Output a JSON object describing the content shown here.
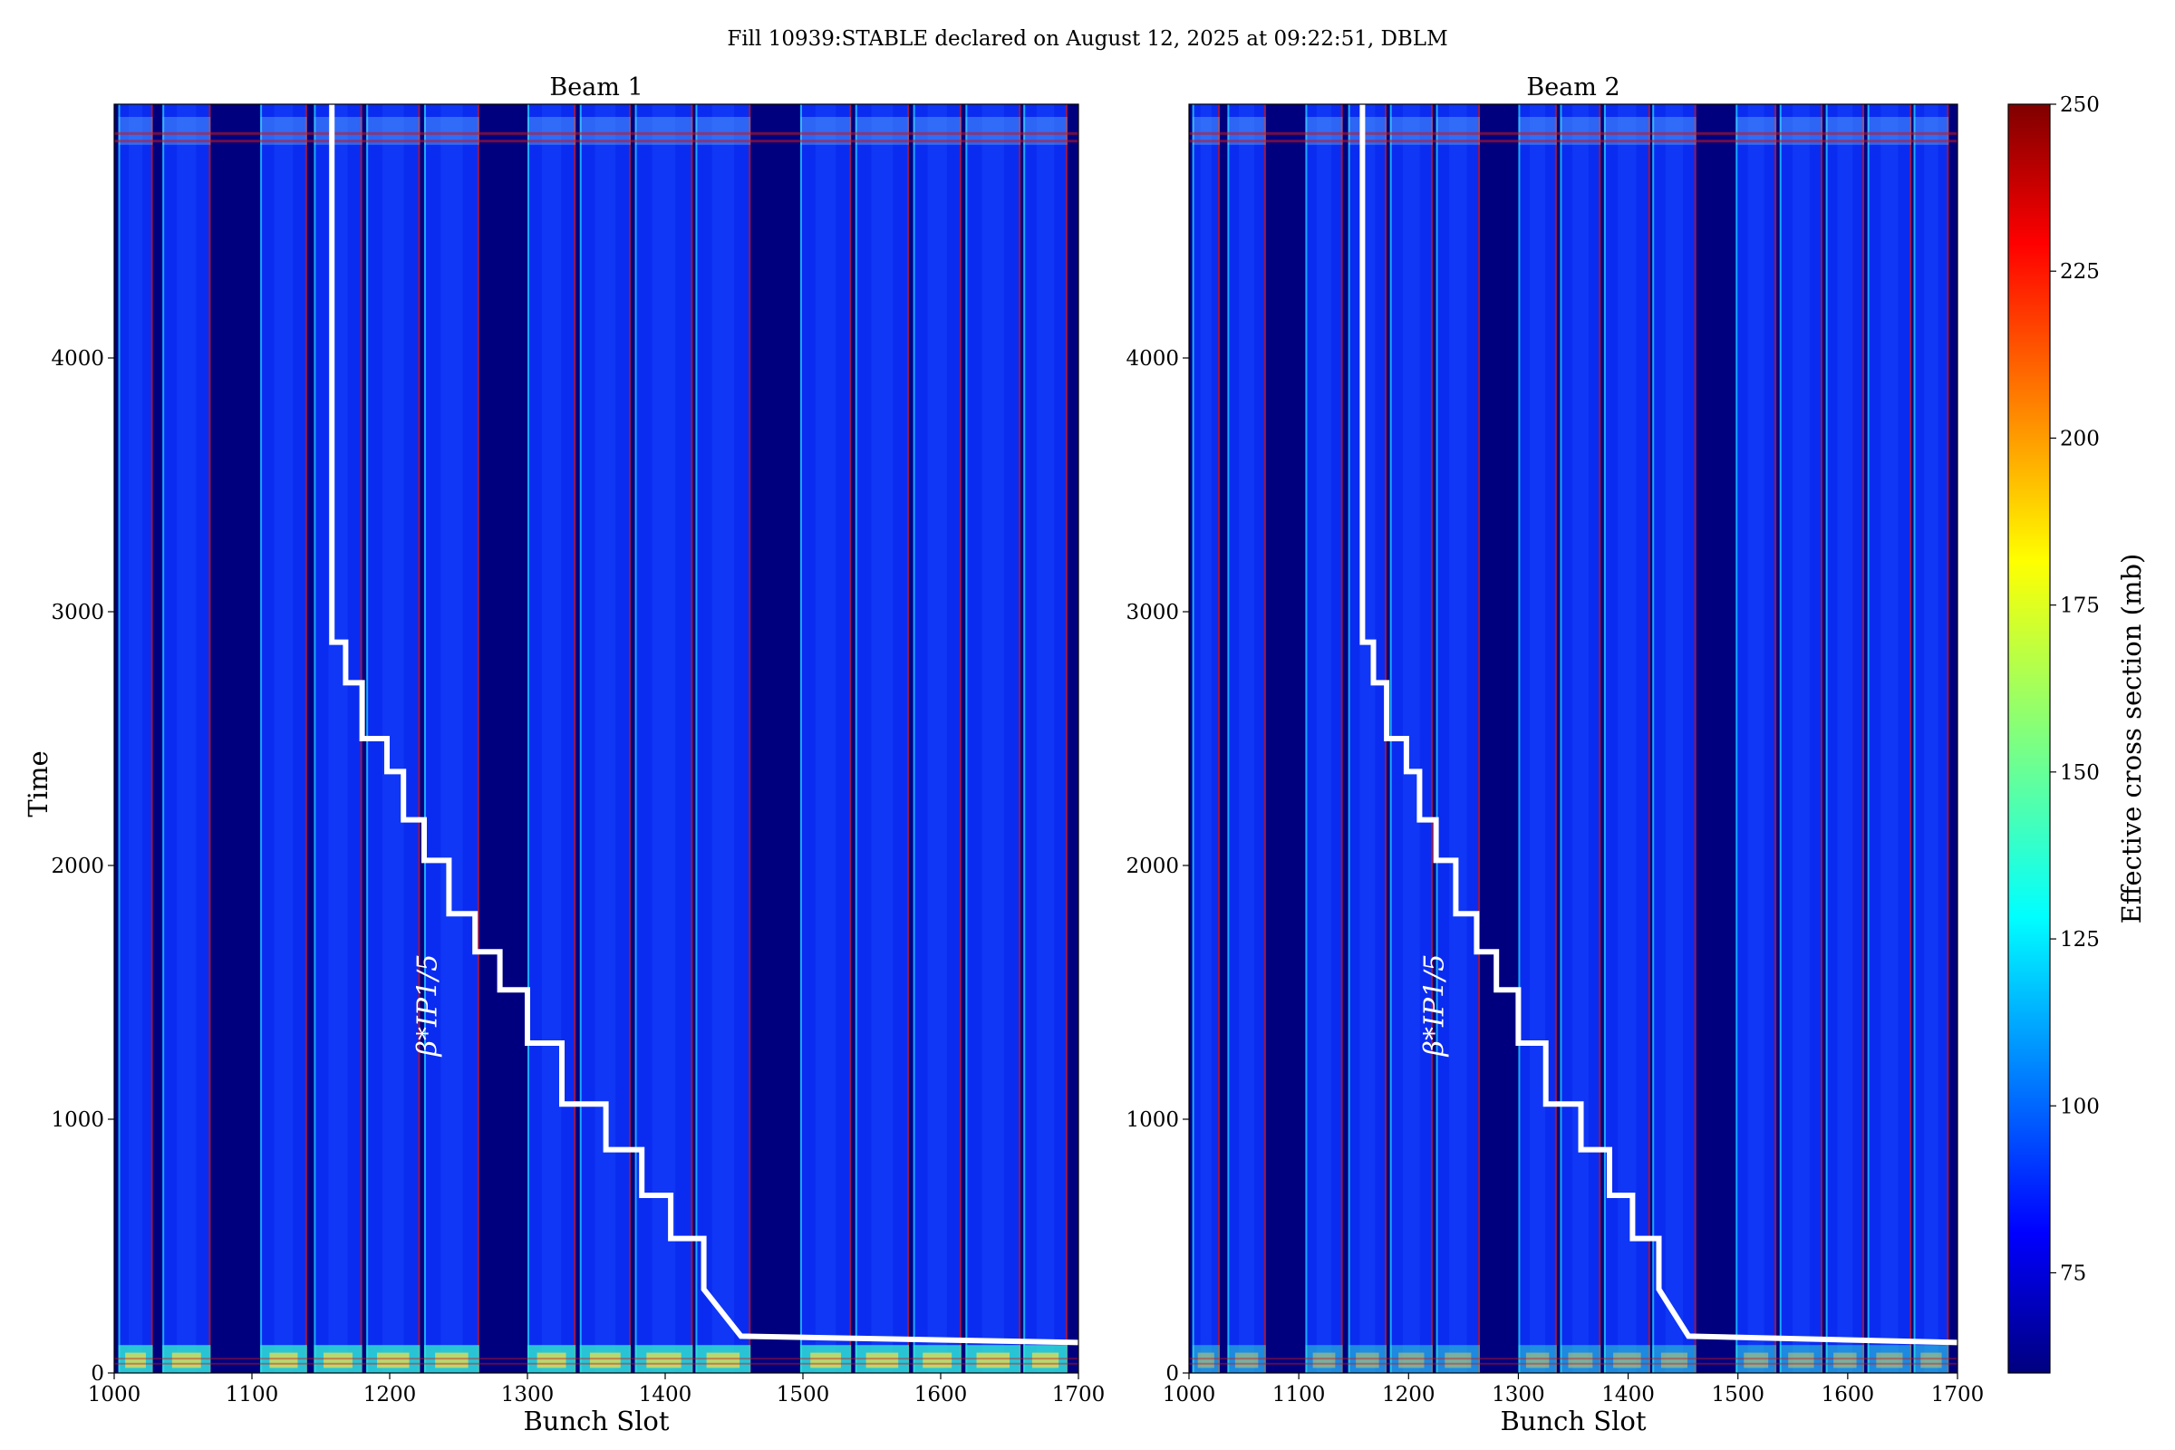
{
  "chart_data": {
    "type": "heatmap",
    "title": "Fill 10939:STABLE declared on August 12, 2025 at 09:22:51, DBLM",
    "panels": [
      {
        "title": "Beam 1",
        "xlabel": "Bunch Slot",
        "ylabel": "Time",
        "xlim": [
          1000,
          1700
        ],
        "ylim": [
          0,
          5000
        ],
        "xticks": [
          "1000",
          "1100",
          "1200",
          "1300",
          "1400",
          "1500",
          "1600",
          "1700"
        ],
        "yticks": [
          "0",
          "1000",
          "2000",
          "3000",
          "4000"
        ],
        "annotation": "β*IP1/5",
        "bottom_band_intensity": 0.9
      },
      {
        "title": "Beam 2",
        "xlabel": "Bunch Slot",
        "ylabel": "",
        "xlim": [
          1000,
          1700
        ],
        "ylim": [
          0,
          5000
        ],
        "xticks": [
          "1000",
          "1100",
          "1200",
          "1300",
          "1400",
          "1500",
          "1600",
          "1700"
        ],
        "yticks": [
          "0",
          "1000",
          "2000",
          "3000",
          "4000"
        ],
        "annotation": "β*IP1/5",
        "bottom_band_intensity": 0.55
      }
    ],
    "beta_star_step_line": {
      "x": [
        1158,
        1158,
        1168,
        1168,
        1180,
        1180,
        1198,
        1198,
        1210,
        1210,
        1225,
        1225,
        1243,
        1243,
        1262,
        1262,
        1280,
        1280,
        1300,
        1300,
        1325,
        1325,
        1357,
        1357,
        1383,
        1383,
        1404,
        1404,
        1428,
        1428,
        1455,
        1700
      ],
      "y": [
        5000,
        2880,
        2880,
        2720,
        2720,
        2500,
        2500,
        2370,
        2370,
        2180,
        2180,
        2020,
        2020,
        1810,
        1810,
        1660,
        1660,
        1510,
        1510,
        1300,
        1300,
        1060,
        1060,
        880,
        880,
        700,
        700,
        530,
        530,
        330,
        145,
        120
      ],
      "color": "#ffffff"
    },
    "bunch_trains": [
      [
        1003,
        1028
      ],
      [
        1035,
        1070
      ],
      [
        1106,
        1140
      ],
      [
        1145,
        1180
      ],
      [
        1183,
        1222
      ],
      [
        1225,
        1265
      ],
      [
        1300,
        1335
      ],
      [
        1338,
        1375
      ],
      [
        1378,
        1420
      ],
      [
        1422,
        1462
      ],
      [
        1498,
        1535
      ],
      [
        1538,
        1577
      ],
      [
        1580,
        1615
      ],
      [
        1618,
        1658
      ],
      [
        1660,
        1692
      ]
    ],
    "background_color": "#00007f",
    "train_color": "#0a2cf0",
    "hot_edge_color": "#cc1010",
    "colorbar": {
      "label": "Effective cross section (mb)",
      "range": [
        60,
        250
      ],
      "ticks": [
        "75",
        "100",
        "125",
        "150",
        "175",
        "200",
        "225",
        "250"
      ],
      "colormap": "jet"
    }
  }
}
